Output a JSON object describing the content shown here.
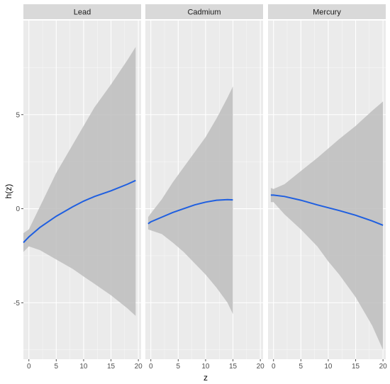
{
  "chart_data": {
    "type": "line",
    "xlabel": "z",
    "ylabel": "h(z)",
    "ylim": [
      -8,
      10
    ],
    "y_ticks": [
      -5,
      0,
      5
    ],
    "grid": true,
    "colors": {
      "panel_bg": "#ebebeb",
      "strip_bg": "#d9d9d9",
      "grid_major": "#ffffff",
      "ribbon": "#bdbdbd",
      "line": "#1f5fe0"
    },
    "panels": [
      {
        "name": "Lead",
        "xlim": [
          -1,
          20.5
        ],
        "x_ticks": [
          0,
          5,
          10,
          15,
          20
        ],
        "x": [
          -1,
          0,
          2,
          5,
          8,
          10,
          12,
          15,
          18,
          19.5
        ],
        "y": [
          -1.8,
          -1.5,
          -1.0,
          -0.4,
          0.1,
          0.4,
          0.65,
          0.95,
          1.3,
          1.5
        ],
        "lower": [
          -2.3,
          -2.0,
          -2.2,
          -2.7,
          -3.2,
          -3.6,
          -4.0,
          -4.6,
          -5.3,
          -5.7
        ],
        "upper": [
          -1.3,
          -1.1,
          0.1,
          1.9,
          3.4,
          4.4,
          5.4,
          6.6,
          7.9,
          8.6
        ]
      },
      {
        "name": "Cadmium",
        "xlim": [
          -1,
          20.5
        ],
        "x_ticks": [
          0,
          5,
          10,
          15,
          20
        ],
        "x": [
          -0.5,
          0,
          2,
          4,
          6,
          8,
          10,
          12,
          14,
          15
        ],
        "y": [
          -0.8,
          -0.7,
          -0.45,
          -0.2,
          0.0,
          0.2,
          0.35,
          0.45,
          0.48,
          0.47
        ],
        "lower": [
          -1.1,
          -1.15,
          -1.35,
          -1.8,
          -2.3,
          -2.9,
          -3.5,
          -4.2,
          -5.0,
          -5.6
        ],
        "upper": [
          -0.45,
          -0.25,
          0.5,
          1.4,
          2.2,
          3.0,
          3.8,
          4.8,
          5.9,
          6.5
        ]
      },
      {
        "name": "Mercury",
        "xlim": [
          -1,
          20.5
        ],
        "x_ticks": [
          0,
          5,
          10,
          15,
          20
        ],
        "x": [
          -0.5,
          0,
          2,
          5,
          8,
          10,
          12,
          15,
          18,
          20
        ],
        "y": [
          0.72,
          0.72,
          0.65,
          0.45,
          0.2,
          0.05,
          -0.1,
          -0.35,
          -0.65,
          -0.88
        ],
        "lower": [
          0.35,
          0.35,
          -0.3,
          -1.1,
          -2.0,
          -2.8,
          -3.5,
          -4.7,
          -6.2,
          -7.5
        ],
        "upper": [
          1.1,
          1.05,
          1.3,
          2.0,
          2.7,
          3.2,
          3.7,
          4.4,
          5.2,
          5.7
        ]
      }
    ]
  }
}
